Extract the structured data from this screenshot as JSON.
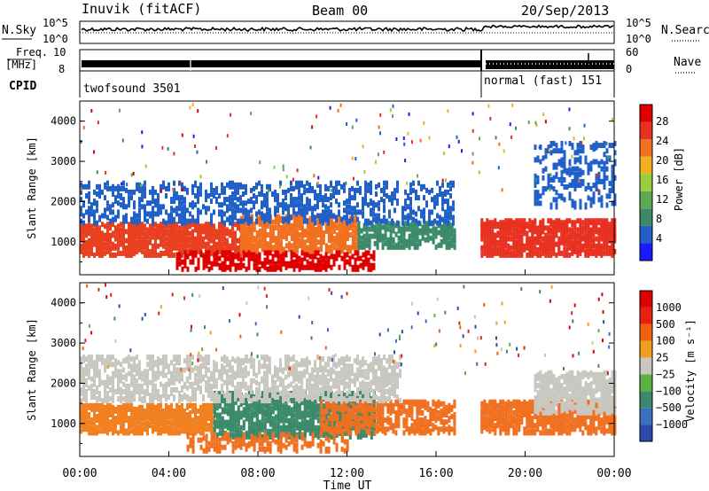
{
  "header": {
    "station": "Inuvik (fitACF)",
    "beam": "Beam 00",
    "date": "20/Sep/2013"
  },
  "strips": {
    "nsky_label": "N.Sky",
    "nsky_ticks": [
      "10^5",
      "10^0"
    ],
    "nsearch_label": "N.Search",
    "nsearch_ticks": [
      "10^5",
      "10^0"
    ],
    "freq_label_1": "Freq.",
    "freq_label_2": "[MHz]",
    "freq_ticks": [
      "10",
      "8"
    ],
    "nave_label": "Nave",
    "nave_ticks": [
      "60",
      "0"
    ],
    "cpid_label": "CPID",
    "cpid_segments": [
      "twofsound 3501",
      "normal (fast) 151"
    ]
  },
  "chart_data": [
    {
      "type": "heatmap",
      "title": "",
      "xlabel": "Time UT",
      "ylabel": "Slant Range [km]",
      "x_ticks": [
        "00:00",
        "04:00",
        "08:00",
        "12:00",
        "16:00",
        "20:00",
        "00:00"
      ],
      "y_ticks": [
        "1000",
        "2000",
        "3000",
        "4000"
      ],
      "ylim": [
        180,
        4500
      ],
      "colorbar": {
        "label": "Power [dB]",
        "ticks": [
          "4",
          "8",
          "12",
          "16",
          "20",
          "24",
          "28"
        ],
        "colors": [
          "#1a1aff",
          "#2060c8",
          "#3a8a6a",
          "#5aaa50",
          "#9acc40",
          "#f0b020",
          "#f07020",
          "#e83020",
          "#e00000"
        ]
      },
      "bands": [
        {
          "t0": 0.0,
          "t1": 0.3,
          "r0": 600,
          "r1": 1400,
          "color": "#e84020",
          "density": 0.6
        },
        {
          "t0": 0.3,
          "t1": 0.52,
          "r0": 700,
          "r1": 1600,
          "color": "#f07020",
          "density": 0.55
        },
        {
          "t0": 0.52,
          "t1": 0.7,
          "r0": 800,
          "r1": 1400,
          "color": "#3a8a6a",
          "density": 0.5
        },
        {
          "t0": 0.75,
          "t1": 1.0,
          "r0": 600,
          "r1": 1500,
          "color": "#e83020",
          "density": 0.6
        },
        {
          "t0": 0.18,
          "t1": 0.55,
          "r0": 250,
          "r1": 700,
          "color": "#e00000",
          "density": 0.4
        },
        {
          "t0": 0.0,
          "t1": 0.7,
          "r0": 1400,
          "r1": 2400,
          "color": "#2060c8",
          "density": 0.25
        },
        {
          "t0": 0.85,
          "t1": 1.0,
          "r0": 1800,
          "r1": 3400,
          "color": "#2060c8",
          "density": 0.2
        }
      ]
    },
    {
      "type": "heatmap",
      "title": "",
      "xlabel": "Time UT",
      "ylabel": "Slant Range [km]",
      "x_ticks": [
        "00:00",
        "04:00",
        "08:00",
        "12:00",
        "16:00",
        "20:00",
        "00:00"
      ],
      "y_ticks": [
        "1000",
        "2000",
        "3000",
        "4000"
      ],
      "ylim": [
        180,
        4500
      ],
      "colorbar": {
        "label": "Velocity [m s⁻¹]",
        "ticks": [
          "1000",
          "500",
          "100",
          "25",
          "−25",
          "−100",
          "−500",
          "−1000"
        ],
        "colors": [
          "#2a4ab0",
          "#3a70c0",
          "#3a8a6a",
          "#5ab040",
          "#c8c8c0",
          "#f0a020",
          "#f06010",
          "#e82010",
          "#e00000"
        ]
      },
      "bands": [
        {
          "t0": 0.0,
          "t1": 0.25,
          "r0": 700,
          "r1": 1400,
          "color": "#f08020",
          "density": 0.6
        },
        {
          "t0": 0.25,
          "t1": 0.55,
          "r0": 600,
          "r1": 1700,
          "color": "#3a8a6a",
          "density": 0.55
        },
        {
          "t0": 0.45,
          "t1": 0.7,
          "r0": 700,
          "r1": 1500,
          "color": "#f07020",
          "density": 0.45
        },
        {
          "t0": 0.75,
          "t1": 1.0,
          "r0": 700,
          "r1": 1500,
          "color": "#f07020",
          "density": 0.6
        },
        {
          "t0": 0.0,
          "t1": 0.6,
          "r0": 1500,
          "r1": 2600,
          "color": "#c8c8c0",
          "density": 0.35
        },
        {
          "t0": 0.85,
          "t1": 1.0,
          "r0": 1200,
          "r1": 2200,
          "color": "#c8c8c0",
          "density": 0.5
        },
        {
          "t0": 0.2,
          "t1": 0.5,
          "r0": 250,
          "r1": 700,
          "color": "#f07020",
          "density": 0.3
        }
      ]
    }
  ]
}
